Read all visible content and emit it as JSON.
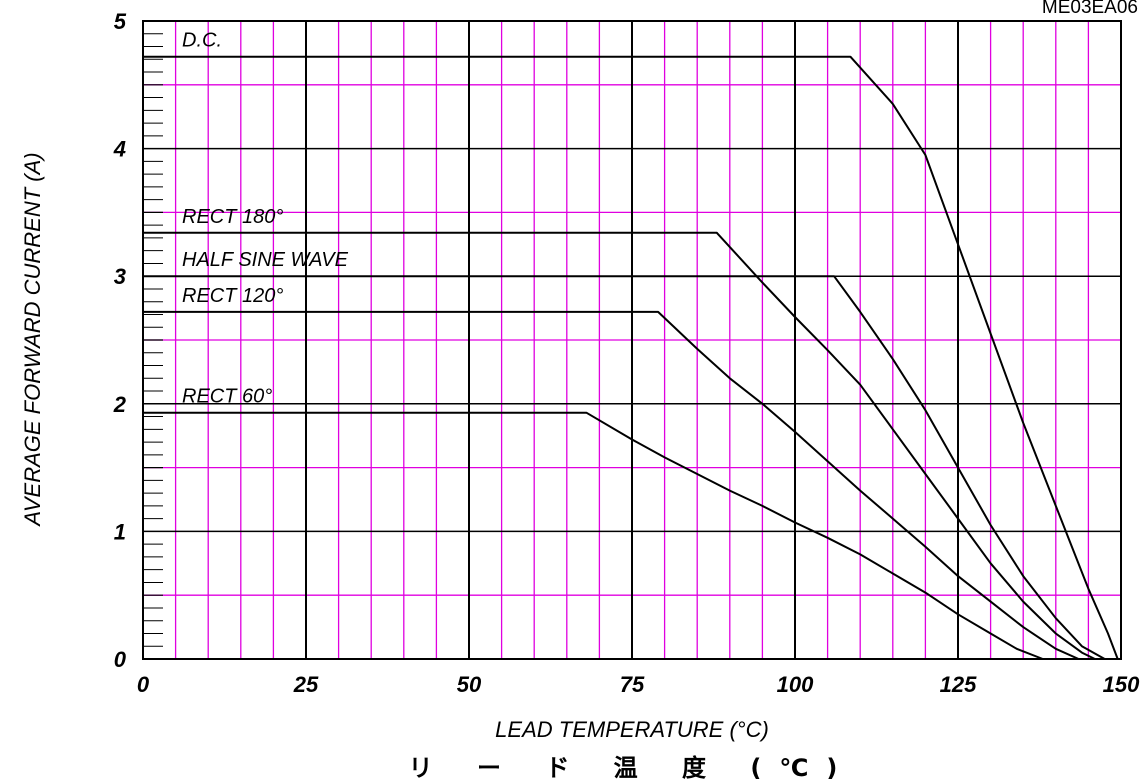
{
  "chart_data": {
    "type": "line",
    "figure_code": "ME03EA06",
    "xlabel": "LEAD TEMPERATURE (°C)",
    "xlabel_jp": "リ ー ド 温 度 (℃)",
    "ylabel": "AVERAGE FORWARD CURRENT (A)",
    "xlim": [
      0,
      150
    ],
    "ylim": [
      0,
      5
    ],
    "x_ticks": [
      "0",
      "25",
      "50",
      "75",
      "100",
      "125",
      "150"
    ],
    "y_ticks": [
      "0",
      "1",
      "2",
      "3",
      "4",
      "5"
    ],
    "grid": true,
    "colors": {
      "major_grid": "#000000",
      "minor_grid": "#e000e0",
      "series": "#000000"
    },
    "series": [
      {
        "name": "D.C.",
        "points": [
          [
            0,
            4.72
          ],
          [
            108.5,
            4.72
          ],
          [
            115,
            4.35
          ],
          [
            120,
            3.95
          ],
          [
            125,
            3.25
          ],
          [
            130,
            2.55
          ],
          [
            135,
            1.85
          ],
          [
            140,
            1.2
          ],
          [
            145,
            0.55
          ],
          [
            148,
            0.2
          ],
          [
            149.5,
            0
          ]
        ]
      },
      {
        "name": "RECT 180°",
        "points": [
          [
            0,
            3.34
          ],
          [
            88,
            3.34
          ],
          [
            95,
            2.95
          ],
          [
            100,
            2.68
          ],
          [
            105,
            2.42
          ],
          [
            110,
            2.15
          ],
          [
            115,
            1.8
          ],
          [
            120,
            1.45
          ],
          [
            125,
            1.1
          ],
          [
            130,
            0.75
          ],
          [
            135,
            0.45
          ],
          [
            140,
            0.2
          ],
          [
            144,
            0.05
          ],
          [
            146,
            0
          ]
        ]
      },
      {
        "name": "HALF SINE WAVE",
        "points": [
          [
            0,
            3.0
          ],
          [
            106,
            3.0
          ],
          [
            110,
            2.72
          ],
          [
            115,
            2.35
          ],
          [
            120,
            1.95
          ],
          [
            125,
            1.5
          ],
          [
            130,
            1.05
          ],
          [
            135,
            0.65
          ],
          [
            140,
            0.32
          ],
          [
            144,
            0.1
          ],
          [
            147.5,
            0
          ]
        ]
      },
      {
        "name": "RECT 120°",
        "points": [
          [
            0,
            2.72
          ],
          [
            79,
            2.72
          ],
          [
            85,
            2.43
          ],
          [
            90,
            2.2
          ],
          [
            95,
            2.0
          ],
          [
            100,
            1.78
          ],
          [
            105,
            1.55
          ],
          [
            110,
            1.32
          ],
          [
            115,
            1.1
          ],
          [
            120,
            0.88
          ],
          [
            125,
            0.65
          ],
          [
            130,
            0.45
          ],
          [
            135,
            0.25
          ],
          [
            140,
            0.08
          ],
          [
            143.5,
            0
          ]
        ]
      },
      {
        "name": "RECT 60°",
        "points": [
          [
            0,
            1.93
          ],
          [
            68,
            1.93
          ],
          [
            75,
            1.72
          ],
          [
            80,
            1.58
          ],
          [
            85,
            1.45
          ],
          [
            90,
            1.32
          ],
          [
            95,
            1.2
          ],
          [
            100,
            1.07
          ],
          [
            105,
            0.95
          ],
          [
            110,
            0.82
          ],
          [
            115,
            0.67
          ],
          [
            120,
            0.52
          ],
          [
            125,
            0.35
          ],
          [
            130,
            0.2
          ],
          [
            134,
            0.08
          ],
          [
            138,
            0
          ]
        ]
      }
    ]
  }
}
